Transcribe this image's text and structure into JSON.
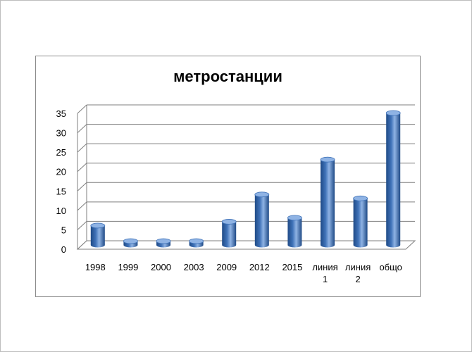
{
  "chart_data": {
    "type": "bar",
    "title": "метростанции",
    "categories": [
      "1998",
      "1999",
      "2000",
      "2003",
      "2009",
      "2012",
      "2015",
      "линия 1",
      "линия 2",
      "общо"
    ],
    "category_lines": [
      [
        "1998"
      ],
      [
        "1999"
      ],
      [
        "2000"
      ],
      [
        "2003"
      ],
      [
        "2009"
      ],
      [
        "2012"
      ],
      [
        "2015"
      ],
      [
        "линия",
        "1"
      ],
      [
        "линия",
        "2"
      ],
      [
        "общо"
      ]
    ],
    "values": [
      5,
      1,
      1,
      1,
      6,
      13,
      7,
      22,
      12,
      34
    ],
    "ylim": [
      0,
      35
    ],
    "yticks": [
      0,
      5,
      10,
      15,
      20,
      25,
      30,
      35
    ],
    "grid": true,
    "legend": "none",
    "bar_color": "#3f72b8",
    "bar_dark": "#1f4a86",
    "bar_light": "#8fb3e4"
  }
}
